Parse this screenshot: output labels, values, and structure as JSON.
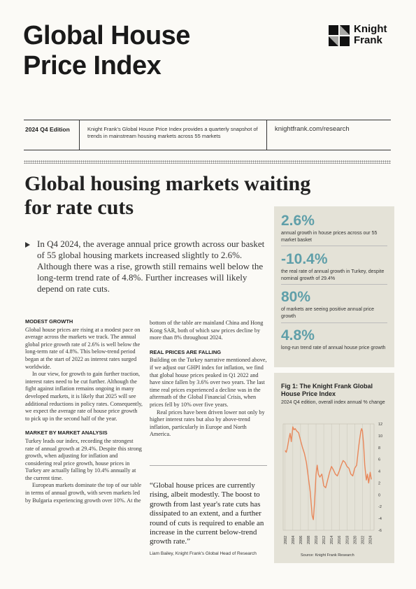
{
  "header": {
    "title": "Global House Price Index",
    "logo_text_1": "Knight",
    "logo_text_2": "Frank",
    "edition": "2024 Q4 Edition",
    "blurb": "Knight Frank's Global House Price Index provides a quarterly snapshot of trends in mainstream housing markets across 55 markets",
    "url": "knightfrank.com/research"
  },
  "headline": "Global housing markets waiting for rate cuts",
  "intro": "In Q4 2024, the average annual price growth across our basket of 55 global housing markets increased slightly to 2.6%. Although there was a rise, growth still remains well below the long-term trend rate of 4.8%. Further increases will likely depend on rate cuts.",
  "stats": [
    {
      "value": "2.6%",
      "desc": "annual growth in house prices across our 55 market basket"
    },
    {
      "value": "-10.4%",
      "desc": "the real rate of annual growth in Turkey, despite nominal growth of 29.4%"
    },
    {
      "value": "80%",
      "desc": "of markets are seeing positive annual price growth"
    },
    {
      "value": "4.8%",
      "desc": "long-run trend rate of annual house price growth"
    }
  ],
  "sections": {
    "modest_heading": "MODEST GROWTH",
    "modest_p1": "Global house prices are rising at a modest pace on average across the markets we track. The annual global price growth rate of 2.6% is well below the long-term rate of 4.8%. This below-trend period began at the start of 2022 as interest rates surged worldwide.",
    "modest_p2": "In our view, for growth to gain further traction, interest rates need to be cut further. Although the fight against inflation remains ongoing in many developed markets, it is likely that 2025 will see additional reductions in policy rates. Consequently, we expect the average rate of house price growth to pick up in the second half of the year.",
    "market_heading": "MARKET BY MARKET ANALYSIS",
    "market_p1": "Turkey leads our index, recording the strongest rate of annual growth at 29.4%. Despite this strong growth, when adjusting for inflation and considering real price growth, house prices in Turkey are actually falling by 10.4% annually at the current time.",
    "market_p2": "European markets dominate the top of our table in terms of annual growth, with seven markets led by Bulgaria experiencing growth over 10%. At the",
    "col2_p1": "bottom of the table are mainland China and Hong Kong SAR, both of which saw prices decline by more than 8% throughout 2024.",
    "real_heading": "REAL PRICES ARE FALLING",
    "real_p1": "Building on the Turkey narrative mentioned above, if we adjust our GHPI index for inflation, we find that global house prices peaked in Q1 2022 and have since fallen by 3.6% over two years. The last time real prices experienced a decline was in the aftermath of the Global Financial Crisis, when prices fell by 10% over five years.",
    "real_p2": "Real prices have been driven lower not only by higher interest rates but also by above-trend inflation, particularly in Europe and North America."
  },
  "quote": {
    "text": "“Global house prices are currently rising, albeit modestly. The boost to growth from last year's rate cuts has dissipated to an extent, and a further round of cuts is required to enable an increase in the current below-trend growth rate.”",
    "attribution": "Liam Bailey, Knight Frank's Global Head of Research"
  },
  "figure": {
    "title": "Fig 1: The Knight Frank Global House Price Index",
    "subtitle": "2024 Q4 edition, overall index annual % change",
    "source": "Source: Knight Frank Research"
  },
  "chart_data": {
    "type": "line",
    "series": [
      {
        "name": "",
        "color": "#e8875a",
        "values": [
          [
            2002.0,
            7.5
          ],
          [
            2002.3,
            7.2
          ],
          [
            2002.6,
            8.0
          ],
          [
            2003.0,
            9.5
          ],
          [
            2003.3,
            10.4
          ],
          [
            2003.6,
            9.0
          ],
          [
            2004.0,
            11.5
          ],
          [
            2004.3,
            11.0
          ],
          [
            2004.6,
            11.2
          ],
          [
            2005.0,
            10.8
          ],
          [
            2005.5,
            10.5
          ],
          [
            2006.0,
            9.2
          ],
          [
            2006.5,
            8.0
          ],
          [
            2007.0,
            7.0
          ],
          [
            2007.5,
            5.5
          ],
          [
            2008.0,
            3.0
          ],
          [
            2008.5,
            0.5
          ],
          [
            2009.0,
            -3.5
          ],
          [
            2009.3,
            -4.2
          ],
          [
            2009.6,
            -1.5
          ],
          [
            2010.0,
            3.5
          ],
          [
            2010.3,
            5.0
          ],
          [
            2010.6,
            3.5
          ],
          [
            2011.0,
            3.0
          ],
          [
            2011.5,
            3.5
          ],
          [
            2012.0,
            1.5
          ],
          [
            2012.5,
            1.2
          ],
          [
            2013.0,
            2.5
          ],
          [
            2013.5,
            3.8
          ],
          [
            2014.0,
            4.8
          ],
          [
            2014.5,
            4.2
          ],
          [
            2015.0,
            3.5
          ],
          [
            2015.5,
            3.2
          ],
          [
            2016.0,
            4.0
          ],
          [
            2016.5,
            5.0
          ],
          [
            2017.0,
            5.8
          ],
          [
            2017.5,
            5.5
          ],
          [
            2018.0,
            4.8
          ],
          [
            2018.5,
            4.5
          ],
          [
            2019.0,
            3.5
          ],
          [
            2019.5,
            3.2
          ],
          [
            2020.0,
            4.5
          ],
          [
            2020.5,
            5.0
          ],
          [
            2021.0,
            8.0
          ],
          [
            2021.3,
            9.5
          ],
          [
            2021.6,
            10.8
          ],
          [
            2021.8,
            11.2
          ],
          [
            2022.0,
            10.8
          ],
          [
            2022.3,
            8.5
          ],
          [
            2022.6,
            5.0
          ],
          [
            2023.0,
            2.5
          ],
          [
            2023.3,
            3.5
          ],
          [
            2023.6,
            2.0
          ],
          [
            2024.0,
            3.8
          ],
          [
            2024.3,
            2.6
          ]
        ]
      }
    ],
    "x_ticks": [
      "2002",
      "2004",
      "2006",
      "2008",
      "2010",
      "2012",
      "2014",
      "2016",
      "2018",
      "2020",
      "2022",
      "2024"
    ],
    "y_ticks": [
      12,
      10,
      8,
      6,
      4,
      2,
      0,
      -2,
      -4,
      -6
    ],
    "xlim": [
      2001.5,
      2025.0
    ],
    "ylim": [
      -6,
      12
    ],
    "grid": "vertical"
  }
}
